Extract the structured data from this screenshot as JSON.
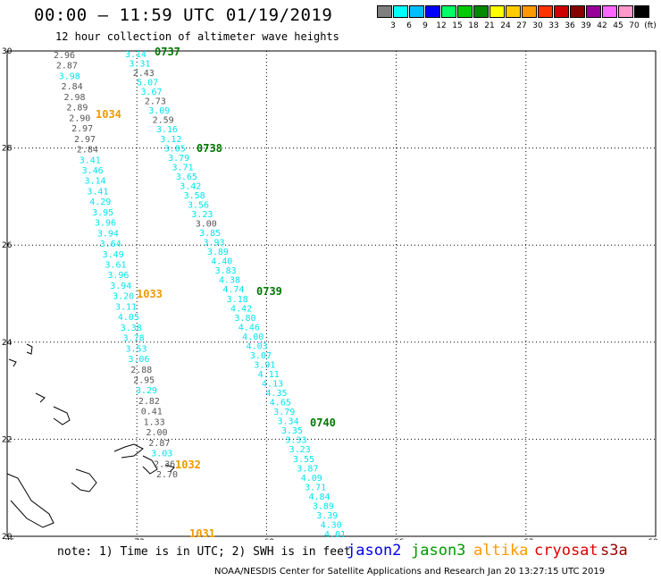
{
  "title": "00:00 – 11:59 UTC 01/19/2019",
  "subtitle": "12 hour collection of altimeter wave heights",
  "colorbar": {
    "colors": [
      "#7f7f7f",
      "#00ffff",
      "#00bfff",
      "#0000ff",
      "#00ff66",
      "#00cc00",
      "#008800",
      "#ffff00",
      "#ffcc00",
      "#ff9900",
      "#ff3300",
      "#cc0000",
      "#880000",
      "#990099",
      "#ff66ff",
      "#ff99cc",
      "#000000"
    ],
    "labels": [
      "3",
      "6",
      "9",
      "12",
      "15",
      "18",
      "21",
      "24",
      "27",
      "30",
      "33",
      "36",
      "39",
      "42",
      "45",
      "70",
      "(ft)"
    ]
  },
  "axes": {
    "lon_ticks": [
      "-75",
      "-72",
      "-69",
      "-66",
      "-63",
      "-60"
    ],
    "lat_ticks": [
      "30",
      "28",
      "26",
      "24",
      "22",
      "20"
    ]
  },
  "palette": {
    "gray": "#555555",
    "cyan": "#00e5ee",
    "green": "#007700",
    "orange": "#ee9900"
  },
  "track_west": {
    "values": [
      "2.96",
      "2.87",
      "3.98",
      "2.84",
      "2.98",
      "2.89",
      "2.90",
      "2.97",
      "2.97",
      "2.84",
      "3.41",
      "3.46",
      "3.14",
      "3.41",
      "4.29",
      "3.95",
      "3.96",
      "3.94",
      "3.64",
      "3.49",
      "3.61",
      "3.96",
      "3.94",
      "3.20",
      "3.11",
      "4.05",
      "3.38",
      "3.78",
      "3.53",
      "3.06",
      "2.88",
      "2.95",
      "3.29",
      "2.82",
      "0.41",
      "1.33",
      "2.00",
      "2.87",
      "3.03",
      "2.36",
      "2.70"
    ],
    "colors": [
      "g",
      "g",
      "c",
      "g",
      "g",
      "g",
      "g",
      "g",
      "g",
      "g",
      "c",
      "c",
      "c",
      "c",
      "c",
      "c",
      "c",
      "c",
      "c",
      "c",
      "c",
      "c",
      "c",
      "c",
      "c",
      "c",
      "c",
      "c",
      "c",
      "c",
      "g",
      "g",
      "c",
      "g",
      "g",
      "g",
      "g",
      "g",
      "c",
      "g",
      "g"
    ],
    "times": [
      "1034",
      "1033",
      "1032",
      "1031"
    ]
  },
  "track_east": {
    "values": [
      "3.14",
      "3.31",
      "2.43",
      "5.07",
      "3.67",
      "2.73",
      "3.09",
      "2.59",
      "3.16",
      "3.12",
      "3.85",
      "3.79",
      "3.71",
      "3.65",
      "3.42",
      "3.58",
      "3.56",
      "3.23",
      "3.00",
      "3.85",
      "3.93",
      "3.89",
      "4.40",
      "3.83",
      "4.38",
      "4.74",
      "3.18",
      "4.42",
      "3.80",
      "4.46",
      "4.00",
      "4.03",
      "3.07",
      "3.91",
      "4.11",
      "4.13",
      "4.35",
      "4.65",
      "3.79",
      "3.34",
      "3.35",
      "3.33",
      "3.23",
      "3.55",
      "3.87",
      "4.09",
      "3.71",
      "4.84",
      "3.89",
      "3.39",
      "4.30",
      "4.01"
    ],
    "colors": [
      "c",
      "c",
      "g",
      "c",
      "c",
      "g",
      "c",
      "g",
      "c",
      "c",
      "c",
      "c",
      "c",
      "c",
      "c",
      "c",
      "c",
      "c",
      "g",
      "c",
      "c",
      "c",
      "c",
      "c",
      "c",
      "c",
      "c",
      "c",
      "c",
      "c",
      "c",
      "c",
      "c",
      "c",
      "c",
      "c",
      "c",
      "c",
      "c",
      "c",
      "c",
      "c",
      "c",
      "c",
      "c",
      "c",
      "c",
      "c",
      "c",
      "c",
      "c",
      "c"
    ],
    "times": [
      "0737",
      "0738",
      "0739",
      "0740"
    ]
  },
  "note": "note: 1) Time is in UTC; 2) SWH is in feet",
  "legend": [
    {
      "name": "jason2",
      "color": "#0000ee"
    },
    {
      "name": "jason3",
      "color": "#009900"
    },
    {
      "name": "altika",
      "color": "#ff9900"
    },
    {
      "name": "cryosat",
      "color": "#dd0000"
    },
    {
      "name": "s3a",
      "color": "#990000"
    }
  ],
  "credit": "NOAA/NESDIS Center for Satellite Applications and Research    Jan 20 13:27:15 UTC 2019"
}
